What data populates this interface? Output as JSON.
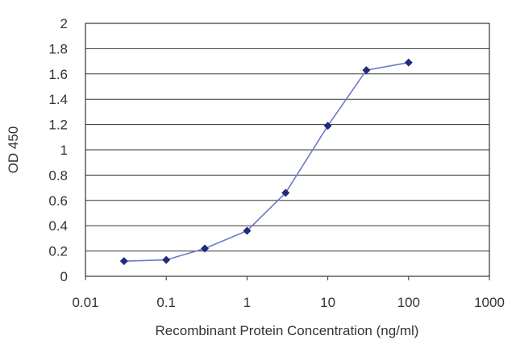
{
  "chart_data": {
    "type": "line",
    "title": "",
    "xlabel": "Recombinant Protein Concentration (ng/ml)",
    "ylabel": "OD 450",
    "xscale": "log",
    "xlim": [
      0.01,
      1000
    ],
    "ylim": [
      0,
      2
    ],
    "x_ticks": [
      "0.01",
      "0.1",
      "1",
      "10",
      "100",
      "1000"
    ],
    "x_tick_values": [
      0.01,
      0.1,
      1,
      10,
      100,
      1000
    ],
    "y_ticks": [
      "0",
      "0.2",
      "0.4",
      "0.6",
      "0.8",
      "1",
      "1.2",
      "1.4",
      "1.6",
      "1.8",
      "2"
    ],
    "y_tick_values": [
      0,
      0.2,
      0.4,
      0.6,
      0.8,
      1,
      1.2,
      1.4,
      1.6,
      1.8,
      2
    ],
    "grid": "horizontal",
    "legend": "none",
    "series": [
      {
        "x": [
          0.03,
          0.1,
          0.3,
          1,
          3,
          10,
          30,
          100
        ],
        "y": [
          0.12,
          0.13,
          0.22,
          0.36,
          0.66,
          1.19,
          1.63,
          1.69
        ]
      }
    ],
    "colors": {
      "line": "#6b78c8",
      "marker": "#1f2a78",
      "grid": "#333333",
      "frame": "#333333"
    }
  }
}
